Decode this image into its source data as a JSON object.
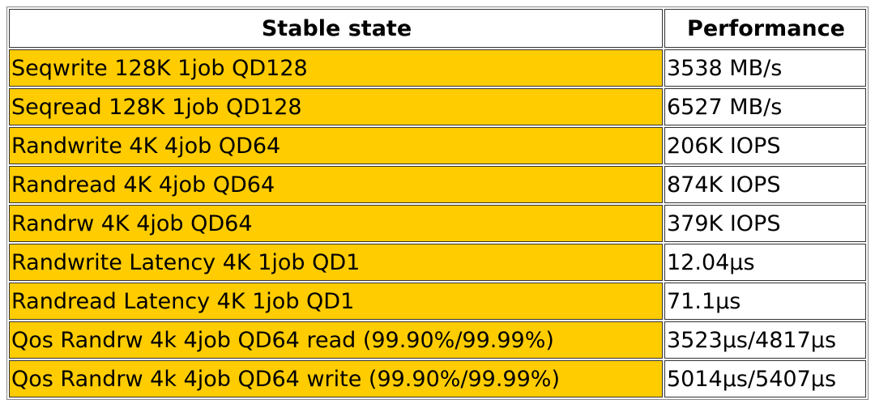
{
  "table": {
    "header": [
      "Stable state",
      "Performance"
    ],
    "rows": [
      [
        "Seqwrite 128K 1job QD128",
        "3538 MB/s"
      ],
      [
        "Seqread 128K 1job QD128",
        "6527 MB/s"
      ],
      [
        "Randwrite 4K 4job QD64",
        "206K IOPS"
      ],
      [
        "Randread 4K 4job QD64",
        "874K IOPS"
      ],
      [
        "Randrw 4K 4job QD64",
        "379K IOPS"
      ],
      [
        "Randwrite Latency 4K 1job QD1",
        "12.04μs"
      ],
      [
        "Randread Latency 4K 1job QD1",
        "71.1μs"
      ],
      [
        "Qos Randrw 4k 4job QD64 read (99.90%/99.99%)",
        "3523μs/4817μs"
      ],
      [
        "Qos Randrw 4k 4job QD64 write (99.90%/99.99%)",
        "5014μs/5407μs"
      ]
    ]
  }
}
